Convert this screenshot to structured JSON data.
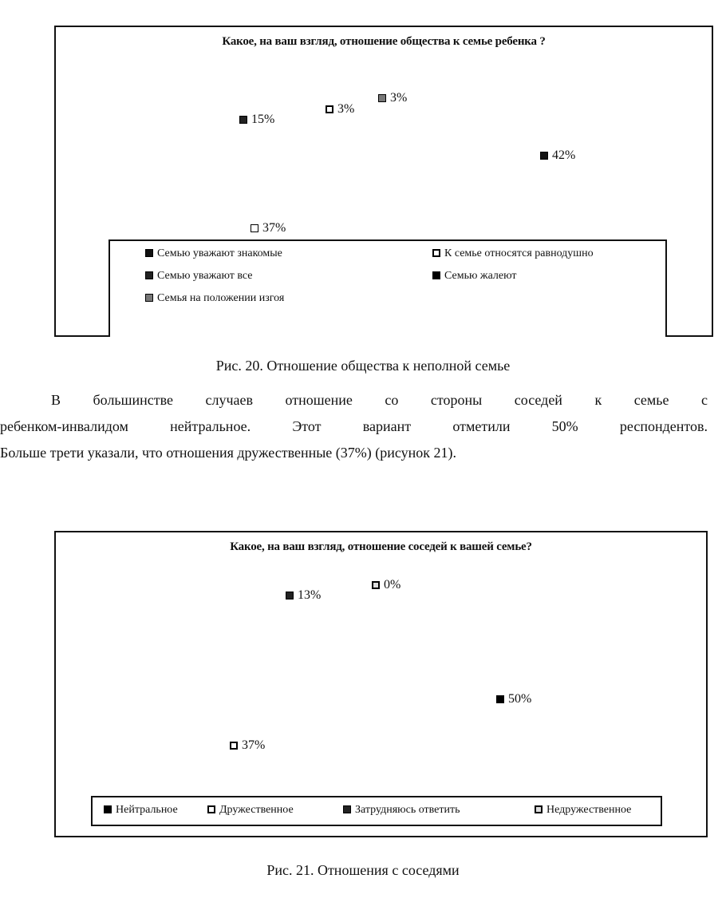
{
  "chart_data": [
    {
      "type": "pie",
      "style": "3d-exploded",
      "title": "Какое, на ваш взгляд, отношение общества к семье ребенка ?",
      "legend_position": "bottom",
      "slices": [
        {
          "label": "Семью уважают знакомые",
          "value": 42,
          "data_label": "42%",
          "color": "#111111",
          "pattern": "dots-dark"
        },
        {
          "label": "К семье относятся равнодушно",
          "value": 37,
          "data_label": "37%",
          "color": "#eeeeee",
          "pattern": "dots-light"
        },
        {
          "label": "Семью уважают все",
          "value": 15,
          "data_label": "15%",
          "color": "#222222",
          "pattern": "dots-dark"
        },
        {
          "label": "Семью жалеют",
          "value": 3,
          "data_label": "3%",
          "color": "#000000",
          "pattern": "solid"
        },
        {
          "label": "Семья на положении изгоя",
          "value": 3,
          "data_label": "3%",
          "color": "#888888",
          "pattern": "dots-mid"
        }
      ]
    },
    {
      "type": "pie",
      "style": "3d",
      "title": "Какое, на ваш взгляд, отношение соседей к вашей семье?",
      "legend_position": "bottom",
      "slices": [
        {
          "label": "Нейтральное",
          "value": 50,
          "data_label": "50%",
          "color": "#111111",
          "pattern": "dots-dark"
        },
        {
          "label": "Дружественное",
          "value": 37,
          "data_label": "37%",
          "color": "#f5f5f5",
          "pattern": "dots-light"
        },
        {
          "label": "Затрудняюсь ответить",
          "value": 13,
          "data_label": "13%",
          "color": "#222222",
          "pattern": "dots-dark"
        },
        {
          "label": "Недружественное",
          "value": 0,
          "data_label": "0%",
          "color": "#dddddd",
          "pattern": "dots-light"
        }
      ]
    }
  ],
  "document": {
    "caption_20": "Рис. 20. Отношение общества к неполной семье",
    "paragraph_lines": [
      "В большинстве случаев отношение со стороны соседей к семье с",
      "ребенком-инвалидом нейтральное. Этот вариант отметили 50% респондентов.",
      "Больше трети указали, что отношения дружественные (37%) (рисунок 21)."
    ],
    "caption_21": "Рис. 21. Отношения с соседями"
  }
}
